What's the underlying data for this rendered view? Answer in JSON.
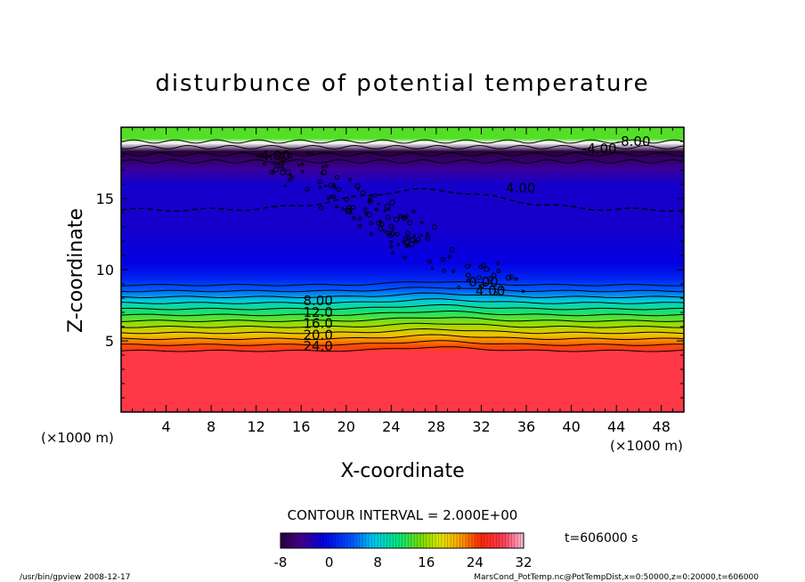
{
  "chart_data": {
    "type": "heatmap",
    "title": "disturbunce of potential temperature",
    "xlabel": "X-coordinate",
    "ylabel": "Z-coordinate",
    "x_unit_label": "(×1000 m)",
    "y_unit_label": "(×1000 m)",
    "xlim": [
      0,
      50
    ],
    "ylim": [
      0,
      20
    ],
    "x_ticks": [
      4,
      8,
      12,
      16,
      20,
      24,
      28,
      32,
      36,
      40,
      44,
      48
    ],
    "y_ticks": [
      5,
      10,
      15
    ],
    "contour_interval_label": "CONTOUR INTERVAL = 2.000E+00",
    "contour_labels": [
      {
        "text": "8.00",
        "x": 17.5,
        "z": 7.5
      },
      {
        "text": "12.0",
        "x": 17.5,
        "z": 6.7
      },
      {
        "text": "16.0",
        "x": 17.5,
        "z": 5.9
      },
      {
        "text": "20.0",
        "x": 17.5,
        "z": 5.1
      },
      {
        "text": "24.0",
        "x": 17.5,
        "z": 4.3
      },
      {
        "text": "4.00",
        "x": 35.5,
        "z": 15.4
      },
      {
        "text": "0.00",
        "x": 32.2,
        "z": 8.8
      },
      {
        "text": "4.00",
        "x": 32.8,
        "z": 8.2
      },
      {
        "text": "-4.00",
        "x": 13.5,
        "z": 17.7
      },
      {
        "text": "-4.00",
        "x": 42.5,
        "z": 18.2
      },
      {
        "text": "-8.00",
        "x": 45.5,
        "z": 18.7
      }
    ],
    "profile": [
      {
        "z": 0.0,
        "value": 28
      },
      {
        "z": 4.2,
        "value": 28
      },
      {
        "z": 4.6,
        "value": 24
      },
      {
        "z": 5.4,
        "value": 20
      },
      {
        "z": 6.2,
        "value": 16
      },
      {
        "z": 7.0,
        "value": 12
      },
      {
        "z": 7.8,
        "value": 8
      },
      {
        "z": 8.6,
        "value": 4
      },
      {
        "z": 9.4,
        "value": 1
      },
      {
        "z": 10.5,
        "value": -1
      },
      {
        "z": 13.0,
        "value": -2
      },
      {
        "z": 16.0,
        "value": -2
      },
      {
        "z": 17.0,
        "value": -4
      },
      {
        "z": 18.0,
        "value": -7
      },
      {
        "z": 18.3,
        "value": -9
      },
      {
        "z": 18.9,
        "value": -10
      },
      {
        "z": 19.2,
        "value": 14
      },
      {
        "z": 20.0,
        "value": 14
      }
    ],
    "colorbar": {
      "min": -8,
      "max": 32,
      "ticks": [
        "-8",
        "0",
        "8",
        "16",
        "24",
        "32"
      ]
    },
    "time_label": "t=606000 s"
  },
  "footer": {
    "left": "/usr/bin/gpview   2008-12-17",
    "right": "MarsCond_PotTemp.nc@PotTempDist,x=0:50000,z=0:20000,t=606000"
  }
}
